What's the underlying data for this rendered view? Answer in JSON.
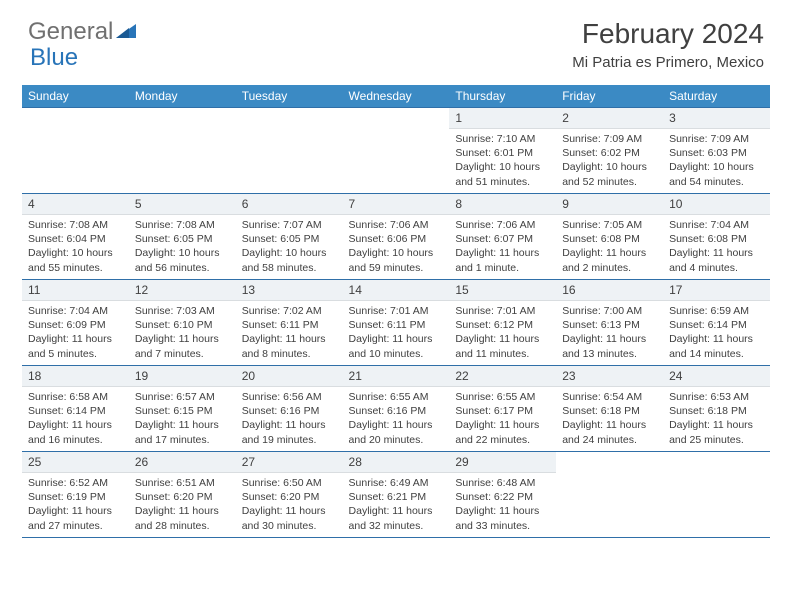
{
  "brand": {
    "part1": "General",
    "part2": "Blue"
  },
  "title": "February 2024",
  "location": "Mi Patria es Primero, Mexico",
  "colors": {
    "header_bg": "#3b8ac4",
    "border": "#2f6fa8",
    "daynum_bg": "#eef2f5",
    "text": "#404040",
    "logo_gray": "#707070",
    "logo_blue": "#2874b8"
  },
  "weekdays": [
    "Sunday",
    "Monday",
    "Tuesday",
    "Wednesday",
    "Thursday",
    "Friday",
    "Saturday"
  ],
  "weeks": [
    [
      null,
      null,
      null,
      null,
      {
        "n": "1",
        "sr": "7:10 AM",
        "ss": "6:01 PM",
        "dl": "10 hours and 51 minutes."
      },
      {
        "n": "2",
        "sr": "7:09 AM",
        "ss": "6:02 PM",
        "dl": "10 hours and 52 minutes."
      },
      {
        "n": "3",
        "sr": "7:09 AM",
        "ss": "6:03 PM",
        "dl": "10 hours and 54 minutes."
      }
    ],
    [
      {
        "n": "4",
        "sr": "7:08 AM",
        "ss": "6:04 PM",
        "dl": "10 hours and 55 minutes."
      },
      {
        "n": "5",
        "sr": "7:08 AM",
        "ss": "6:05 PM",
        "dl": "10 hours and 56 minutes."
      },
      {
        "n": "6",
        "sr": "7:07 AM",
        "ss": "6:05 PM",
        "dl": "10 hours and 58 minutes."
      },
      {
        "n": "7",
        "sr": "7:06 AM",
        "ss": "6:06 PM",
        "dl": "10 hours and 59 minutes."
      },
      {
        "n": "8",
        "sr": "7:06 AM",
        "ss": "6:07 PM",
        "dl": "11 hours and 1 minute."
      },
      {
        "n": "9",
        "sr": "7:05 AM",
        "ss": "6:08 PM",
        "dl": "11 hours and 2 minutes."
      },
      {
        "n": "10",
        "sr": "7:04 AM",
        "ss": "6:08 PM",
        "dl": "11 hours and 4 minutes."
      }
    ],
    [
      {
        "n": "11",
        "sr": "7:04 AM",
        "ss": "6:09 PM",
        "dl": "11 hours and 5 minutes."
      },
      {
        "n": "12",
        "sr": "7:03 AM",
        "ss": "6:10 PM",
        "dl": "11 hours and 7 minutes."
      },
      {
        "n": "13",
        "sr": "7:02 AM",
        "ss": "6:11 PM",
        "dl": "11 hours and 8 minutes."
      },
      {
        "n": "14",
        "sr": "7:01 AM",
        "ss": "6:11 PM",
        "dl": "11 hours and 10 minutes."
      },
      {
        "n": "15",
        "sr": "7:01 AM",
        "ss": "6:12 PM",
        "dl": "11 hours and 11 minutes."
      },
      {
        "n": "16",
        "sr": "7:00 AM",
        "ss": "6:13 PM",
        "dl": "11 hours and 13 minutes."
      },
      {
        "n": "17",
        "sr": "6:59 AM",
        "ss": "6:14 PM",
        "dl": "11 hours and 14 minutes."
      }
    ],
    [
      {
        "n": "18",
        "sr": "6:58 AM",
        "ss": "6:14 PM",
        "dl": "11 hours and 16 minutes."
      },
      {
        "n": "19",
        "sr": "6:57 AM",
        "ss": "6:15 PM",
        "dl": "11 hours and 17 minutes."
      },
      {
        "n": "20",
        "sr": "6:56 AM",
        "ss": "6:16 PM",
        "dl": "11 hours and 19 minutes."
      },
      {
        "n": "21",
        "sr": "6:55 AM",
        "ss": "6:16 PM",
        "dl": "11 hours and 20 minutes."
      },
      {
        "n": "22",
        "sr": "6:55 AM",
        "ss": "6:17 PM",
        "dl": "11 hours and 22 minutes."
      },
      {
        "n": "23",
        "sr": "6:54 AM",
        "ss": "6:18 PM",
        "dl": "11 hours and 24 minutes."
      },
      {
        "n": "24",
        "sr": "6:53 AM",
        "ss": "6:18 PM",
        "dl": "11 hours and 25 minutes."
      }
    ],
    [
      {
        "n": "25",
        "sr": "6:52 AM",
        "ss": "6:19 PM",
        "dl": "11 hours and 27 minutes."
      },
      {
        "n": "26",
        "sr": "6:51 AM",
        "ss": "6:20 PM",
        "dl": "11 hours and 28 minutes."
      },
      {
        "n": "27",
        "sr": "6:50 AM",
        "ss": "6:20 PM",
        "dl": "11 hours and 30 minutes."
      },
      {
        "n": "28",
        "sr": "6:49 AM",
        "ss": "6:21 PM",
        "dl": "11 hours and 32 minutes."
      },
      {
        "n": "29",
        "sr": "6:48 AM",
        "ss": "6:22 PM",
        "dl": "11 hours and 33 minutes."
      },
      null,
      null
    ]
  ],
  "labels": {
    "sunrise": "Sunrise:",
    "sunset": "Sunset:",
    "daylight": "Daylight:"
  }
}
